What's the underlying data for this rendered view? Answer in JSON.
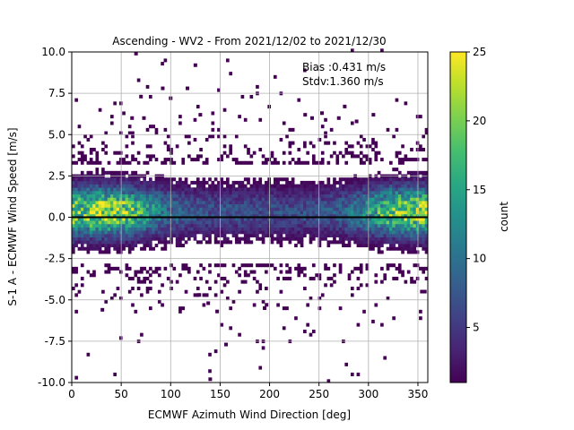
{
  "chart_data": {
    "type": "heatmap",
    "title": "Ascending - WV2 - From 2021/12/02 to 2021/12/30",
    "xlabel": "ECMWF Azimuth Wind Direction [deg]",
    "ylabel": "S-1 A - ECMWF Wind Speed [m/s]",
    "xlim": [
      0,
      360
    ],
    "ylim": [
      -10,
      10
    ],
    "xticks": [
      0,
      50,
      100,
      150,
      200,
      250,
      300,
      350
    ],
    "yticks": [
      -10.0,
      -7.5,
      -5.0,
      -2.5,
      0.0,
      2.5,
      5.0,
      7.5,
      10.0
    ],
    "grid": true,
    "colormap": "viridis",
    "colorbar": {
      "label": "count",
      "range": [
        1,
        25
      ],
      "ticks": [
        5,
        10,
        15,
        20,
        25
      ]
    },
    "annotations": {
      "bias": "Bias :0.431 m/s",
      "stdv": "Stdv:1.360 m/s"
    },
    "reference_line": {
      "y": 0,
      "color": "#000000"
    },
    "density_model": {
      "description_units": "approximate count per 3 deg x 0.2 m/s bin",
      "peak_x_deg": [
        35,
        345
      ],
      "core_halfwidth_ms": 1.0,
      "core_peak_count": 22,
      "band_limits_ms": [
        -2.8,
        3.2
      ],
      "sparse_scatter_x_deg": [
        0,
        360
      ],
      "sparse_scatter_y_ms": [
        -10,
        10
      ]
    },
    "outliers": [
      {
        "x": 65,
        "y": 9.9
      },
      {
        "x": 125,
        "y": 9.2
      },
      {
        "x": 92,
        "y": 7.8
      },
      {
        "x": 117,
        "y": 7.8
      },
      {
        "x": 70,
        "y": 7.3
      },
      {
        "x": 100,
        "y": 7.2
      },
      {
        "x": 140,
        "y": -9.8
      },
      {
        "x": 156,
        "y": -7.7
      },
      {
        "x": 31,
        "y": -5.6
      },
      {
        "x": 147,
        "y": -5.7
      },
      {
        "x": 195,
        "y": -5.5
      },
      {
        "x": 129,
        "y": -4.7
      },
      {
        "x": 138,
        "y": -5.2
      },
      {
        "x": 197,
        "y": -5.3
      },
      {
        "x": 354,
        "y": -4.5
      },
      {
        "x": 357,
        "y": -4.5
      },
      {
        "x": 61,
        "y": 6.0
      },
      {
        "x": 73,
        "y": 6.0
      },
      {
        "x": 130,
        "y": 6.2
      },
      {
        "x": 236,
        "y": 6.2
      },
      {
        "x": 243,
        "y": 6.0
      },
      {
        "x": 253,
        "y": 6.3
      },
      {
        "x": 270,
        "y": 6.0
      },
      {
        "x": 276,
        "y": 6.7
      },
      {
        "x": 288,
        "y": 5.8
      },
      {
        "x": 305,
        "y": 6.2
      }
    ]
  }
}
